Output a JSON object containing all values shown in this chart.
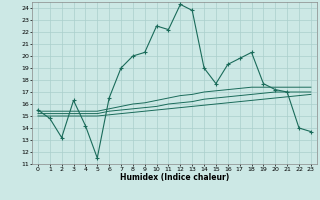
{
  "xlabel": "Humidex (Indice chaleur)",
  "bg_color": "#cce8e5",
  "line_color": "#1a6b5a",
  "grid_color": "#aacfcc",
  "xlim": [
    -0.5,
    23.5
  ],
  "ylim": [
    11,
    24.5
  ],
  "yticks": [
    11,
    12,
    13,
    14,
    15,
    16,
    17,
    18,
    19,
    20,
    21,
    22,
    23,
    24
  ],
  "xticks": [
    0,
    1,
    2,
    3,
    4,
    5,
    6,
    7,
    8,
    9,
    10,
    11,
    12,
    13,
    14,
    15,
    16,
    17,
    18,
    19,
    20,
    21,
    22,
    23
  ],
  "humidex": [
    15.5,
    14.8,
    13.2,
    16.3,
    14.2,
    11.5,
    16.5,
    19.0,
    20.0,
    20.3,
    22.5,
    22.2,
    24.3,
    23.8,
    19.0,
    17.7,
    19.3,
    19.8,
    20.3,
    17.7,
    17.2,
    17.0,
    14.0,
    13.7
  ],
  "line2": [
    15.0,
    15.0,
    15.0,
    15.0,
    15.0,
    15.0,
    15.1,
    15.2,
    15.3,
    15.4,
    15.5,
    15.6,
    15.7,
    15.8,
    15.9,
    16.0,
    16.1,
    16.2,
    16.3,
    16.4,
    16.5,
    16.6,
    16.7,
    16.8
  ],
  "line3": [
    15.2,
    15.2,
    15.2,
    15.2,
    15.2,
    15.2,
    15.4,
    15.5,
    15.6,
    15.7,
    15.8,
    16.0,
    16.1,
    16.2,
    16.4,
    16.5,
    16.6,
    16.7,
    16.8,
    16.9,
    17.0,
    17.0,
    17.0,
    17.0
  ],
  "line4": [
    15.4,
    15.4,
    15.4,
    15.4,
    15.4,
    15.4,
    15.6,
    15.8,
    16.0,
    16.1,
    16.3,
    16.5,
    16.7,
    16.8,
    17.0,
    17.1,
    17.2,
    17.3,
    17.4,
    17.4,
    17.4,
    17.4,
    17.4,
    17.4
  ]
}
